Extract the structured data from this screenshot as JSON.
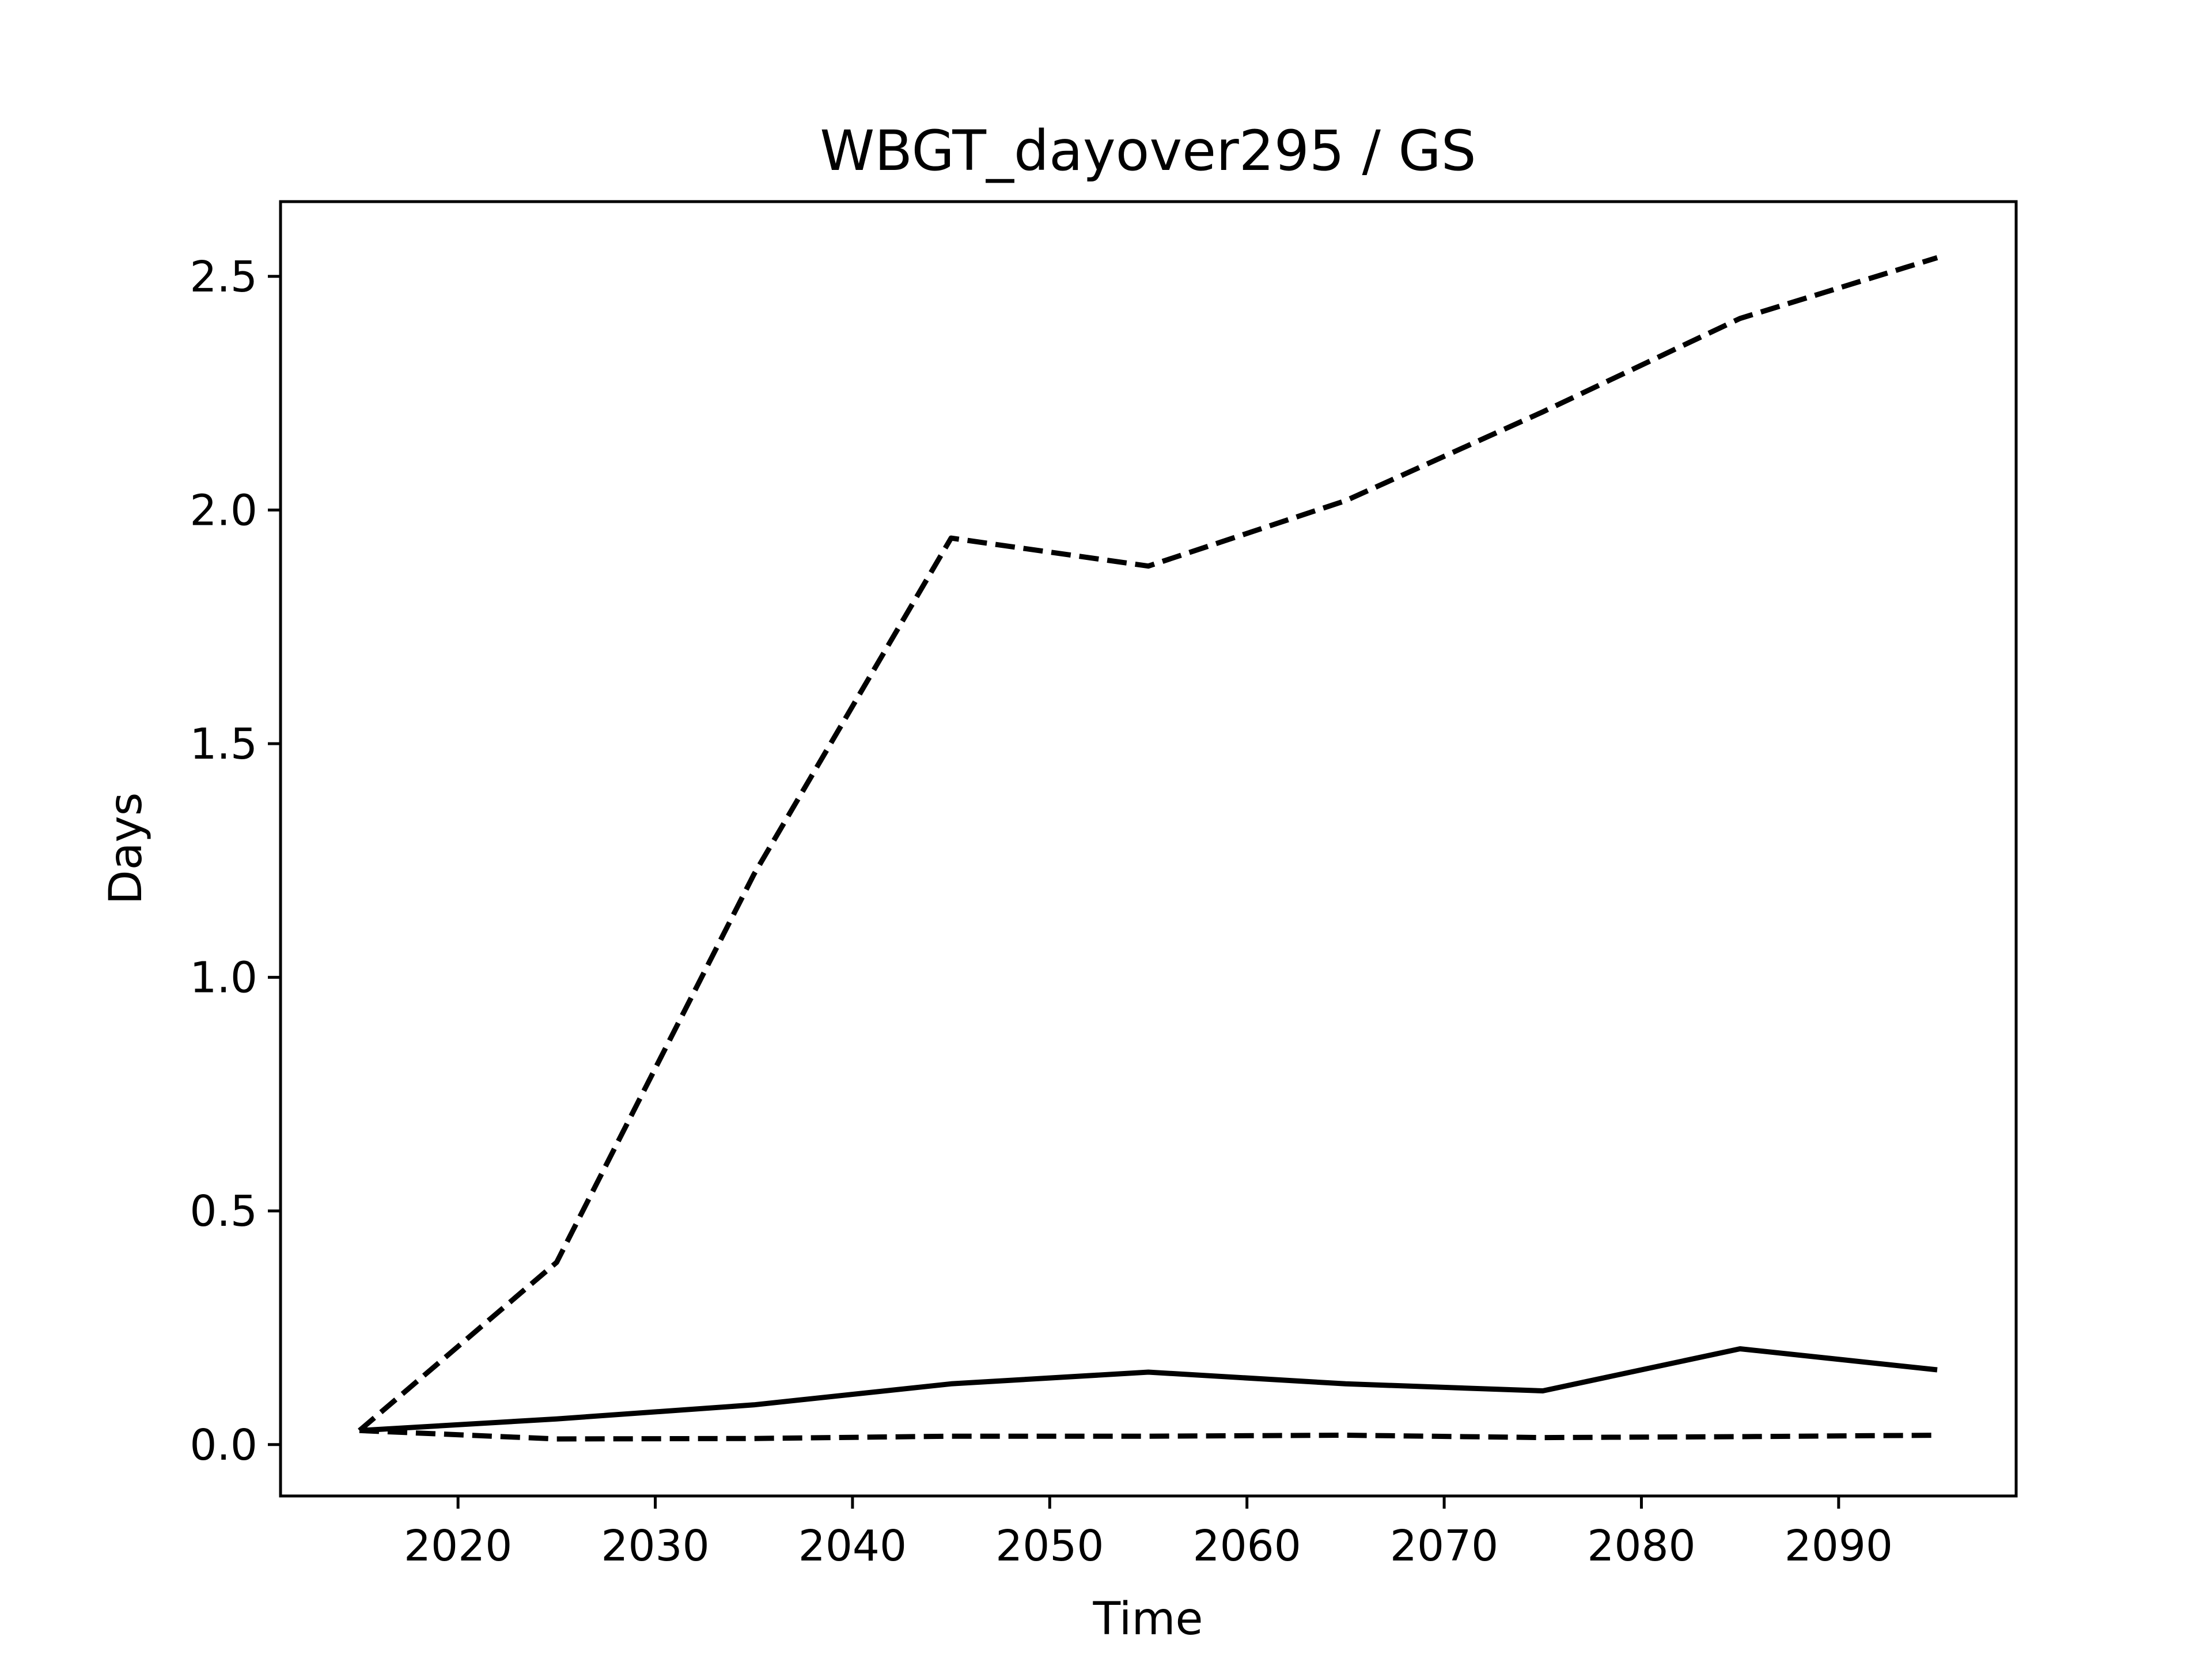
{
  "chart_data": {
    "type": "line",
    "title": "WBGT_dayover295 / GS",
    "xlabel": "Time",
    "ylabel": "Days",
    "xlim": [
      2011,
      2099
    ],
    "ylim": [
      -0.11,
      2.66
    ],
    "x_ticks": [
      2020,
      2030,
      2040,
      2050,
      2060,
      2070,
      2080,
      2090
    ],
    "y_ticks": [
      0.0,
      0.5,
      1.0,
      1.5,
      2.0,
      2.5
    ],
    "y_tick_labels": [
      "0.0",
      "0.5",
      "1.0",
      "1.5",
      "2.0",
      "2.5"
    ],
    "grid": false,
    "legend": "none",
    "x": [
      2015,
      2025,
      2035,
      2045,
      2055,
      2065,
      2075,
      2085,
      2095
    ],
    "series": [
      {
        "style": "dashed",
        "color": "#000000",
        "values": [
          0.03,
          0.39,
          1.22,
          1.94,
          1.88,
          2.02,
          2.21,
          2.41,
          2.54
        ]
      },
      {
        "style": "solid",
        "color": "#000000",
        "values": [
          0.03,
          0.055,
          0.085,
          0.13,
          0.155,
          0.13,
          0.115,
          0.205,
          0.16
        ]
      },
      {
        "style": "dashed",
        "color": "#000000",
        "values": [
          0.03,
          0.012,
          0.013,
          0.018,
          0.018,
          0.02,
          0.015,
          0.017,
          0.02
        ]
      }
    ]
  }
}
